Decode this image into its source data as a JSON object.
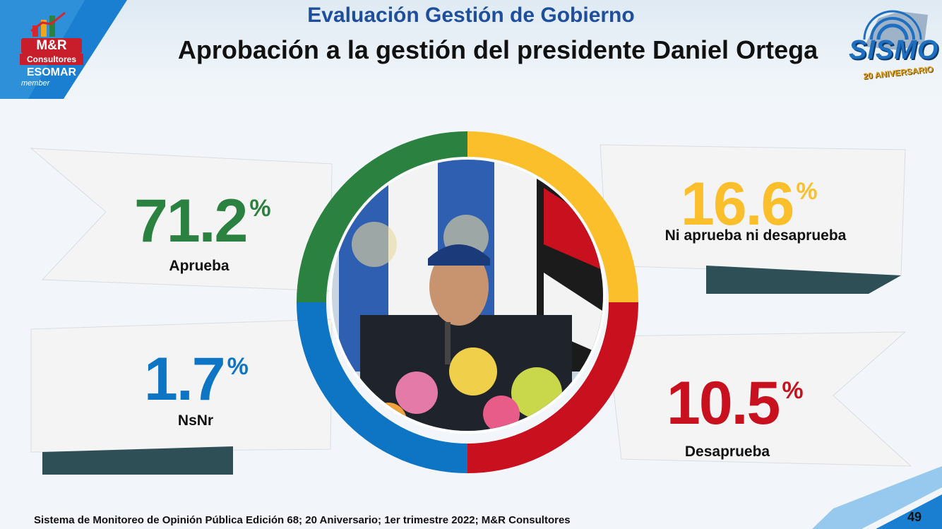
{
  "header": {
    "subtitle": "Evaluación Gestión de Gobierno",
    "title": "Aprobación a la gestión del presidente Daniel Ortega"
  },
  "logos": {
    "mr_brand": "M&R",
    "mr_sub": "Consultores",
    "esomar": "ESOMAR",
    "esomar_member": "member",
    "sismo": "SISMO",
    "sismo_anniversary": "20 ANIVERSARIO"
  },
  "percent_sign": "%",
  "chart_data": {
    "type": "pie",
    "categories": [
      "Aprueba",
      "Ni aprueba ni desaprueba",
      "Desaprueba",
      "NsNr"
    ],
    "values": [
      71.2,
      16.6,
      10.5,
      1.7
    ],
    "display_values": [
      "71.2",
      "16.6",
      "10.5",
      "1.7"
    ],
    "colors": [
      "#2a8140",
      "#fbbf2b",
      "#c8101e",
      "#0e74c4"
    ]
  },
  "footer": {
    "text": "Sistema de Monitoreo de Opinión Pública  Edición 68; 20 Aniversario;  1er trimestre 2022; M&R Consultores",
    "page_number": "49"
  }
}
